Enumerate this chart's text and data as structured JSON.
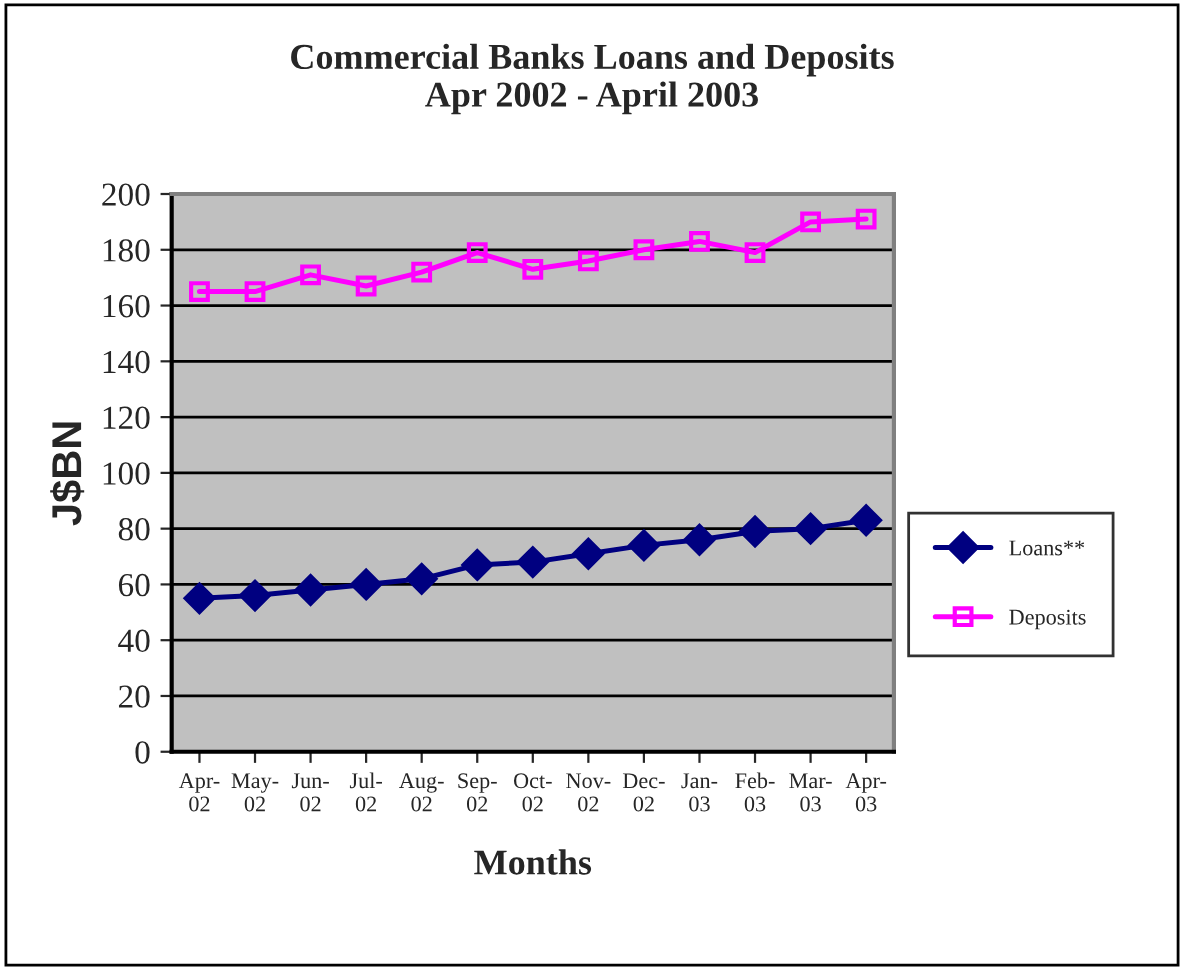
{
  "chart_data": {
    "type": "line",
    "title": "Commercial Banks Loans and Deposits\nApr 2002 - April 2003",
    "xlabel": "Months",
    "ylabel": "J$BN",
    "categories": [
      "Apr-02",
      "May-02",
      "Jun-02",
      "Jul-02",
      "Aug-02",
      "Sep-02",
      "Oct-02",
      "Nov-02",
      "Dec-02",
      "Jan-03",
      "Feb-03",
      "Mar-03",
      "Apr-03"
    ],
    "series": [
      {
        "name": "Loans**",
        "color": "#000080",
        "marker": "diamond",
        "values": [
          55,
          56,
          58,
          60,
          62,
          67,
          68,
          71,
          74,
          76,
          79,
          80,
          83
        ]
      },
      {
        "name": "Deposits",
        "color": "#ff00ff",
        "marker": "square",
        "values": [
          165,
          165,
          171,
          167,
          172,
          179,
          173,
          176,
          180,
          183,
          179,
          190,
          191
        ]
      }
    ],
    "ylim": [
      0,
      200
    ],
    "yticks": [
      0,
      20,
      40,
      60,
      80,
      100,
      120,
      140,
      160,
      180,
      200
    ],
    "grid": "y",
    "legend": "right"
  }
}
